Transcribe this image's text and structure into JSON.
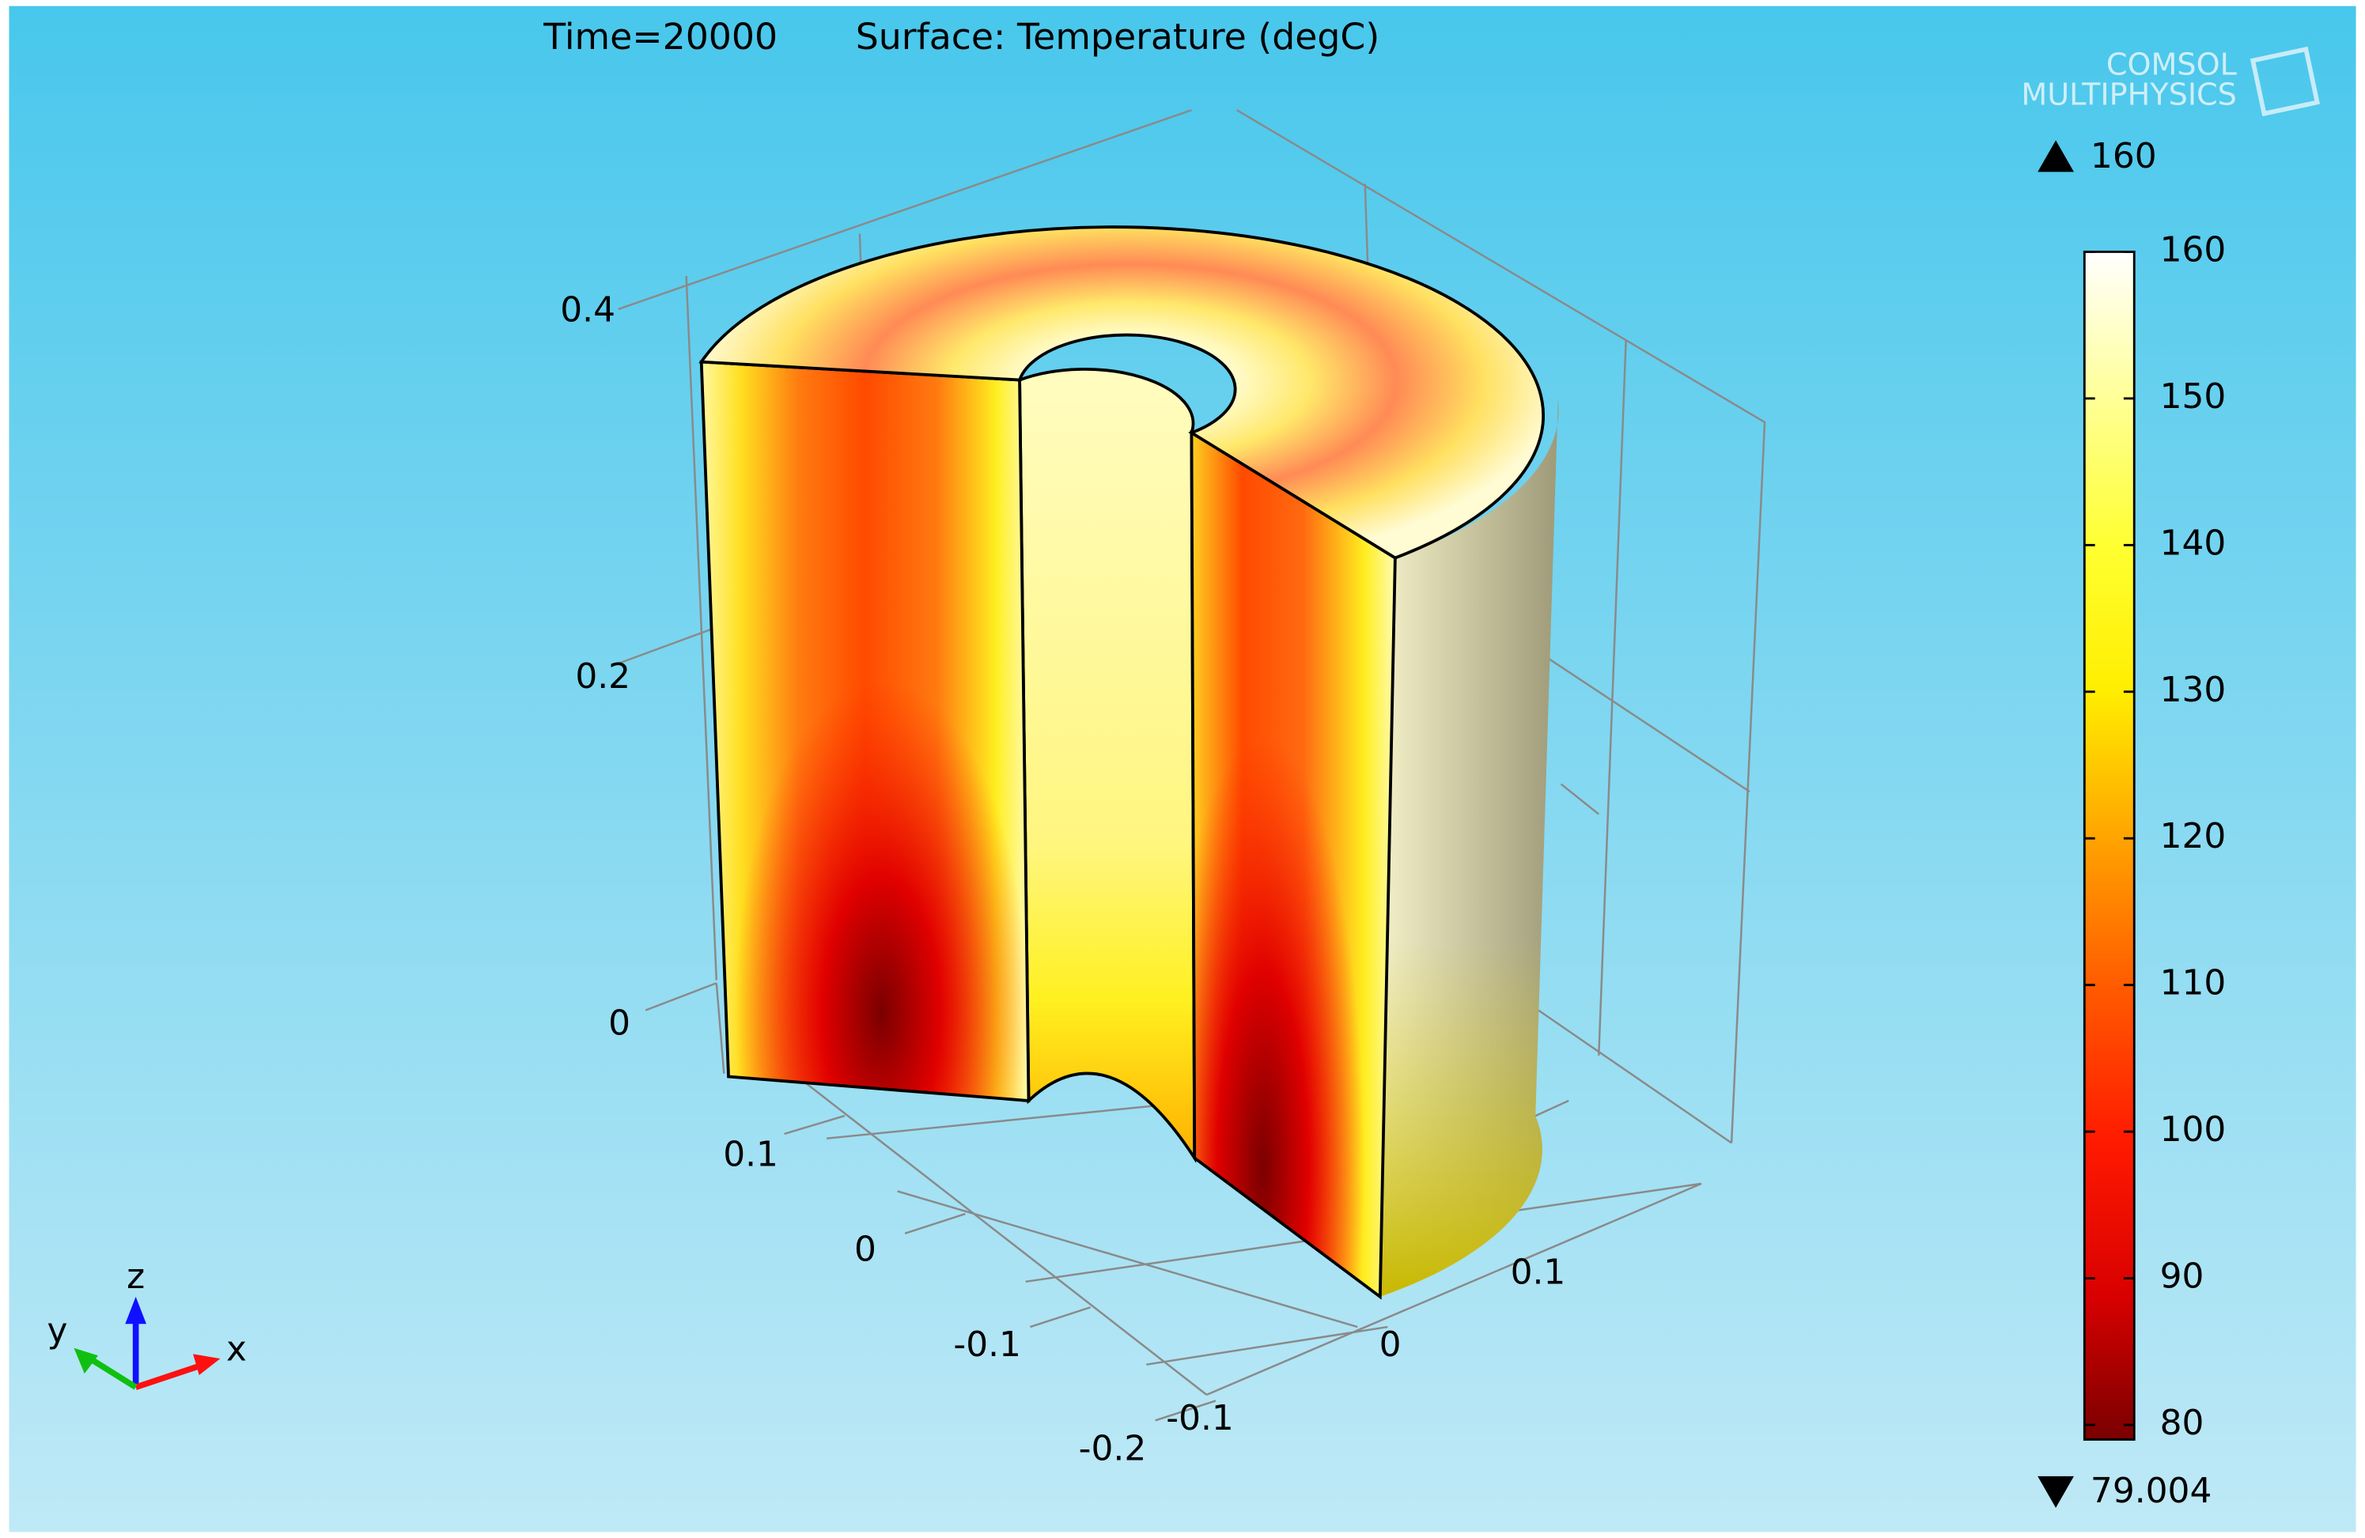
{
  "chart_data": {
    "type": "surface",
    "title": "Time=20000",
    "subtitle": "Surface: Temperature (degC)",
    "logo": [
      "COMSOL",
      "MULTIPHYSICS"
    ],
    "xticks": [
      -0.1,
      0,
      0.1
    ],
    "yticks": [
      -0.2,
      -0.1,
      0,
      0.1
    ],
    "zticks": [
      0,
      0.2,
      0.4
    ],
    "triad_labels": [
      "x",
      "y",
      "z"
    ],
    "colorbar": {
      "lim": [
        79.004,
        160
      ],
      "ticks": [
        80,
        90,
        100,
        110,
        120,
        130,
        140,
        150,
        160
      ],
      "max": 160,
      "min": 79.004
    }
  }
}
